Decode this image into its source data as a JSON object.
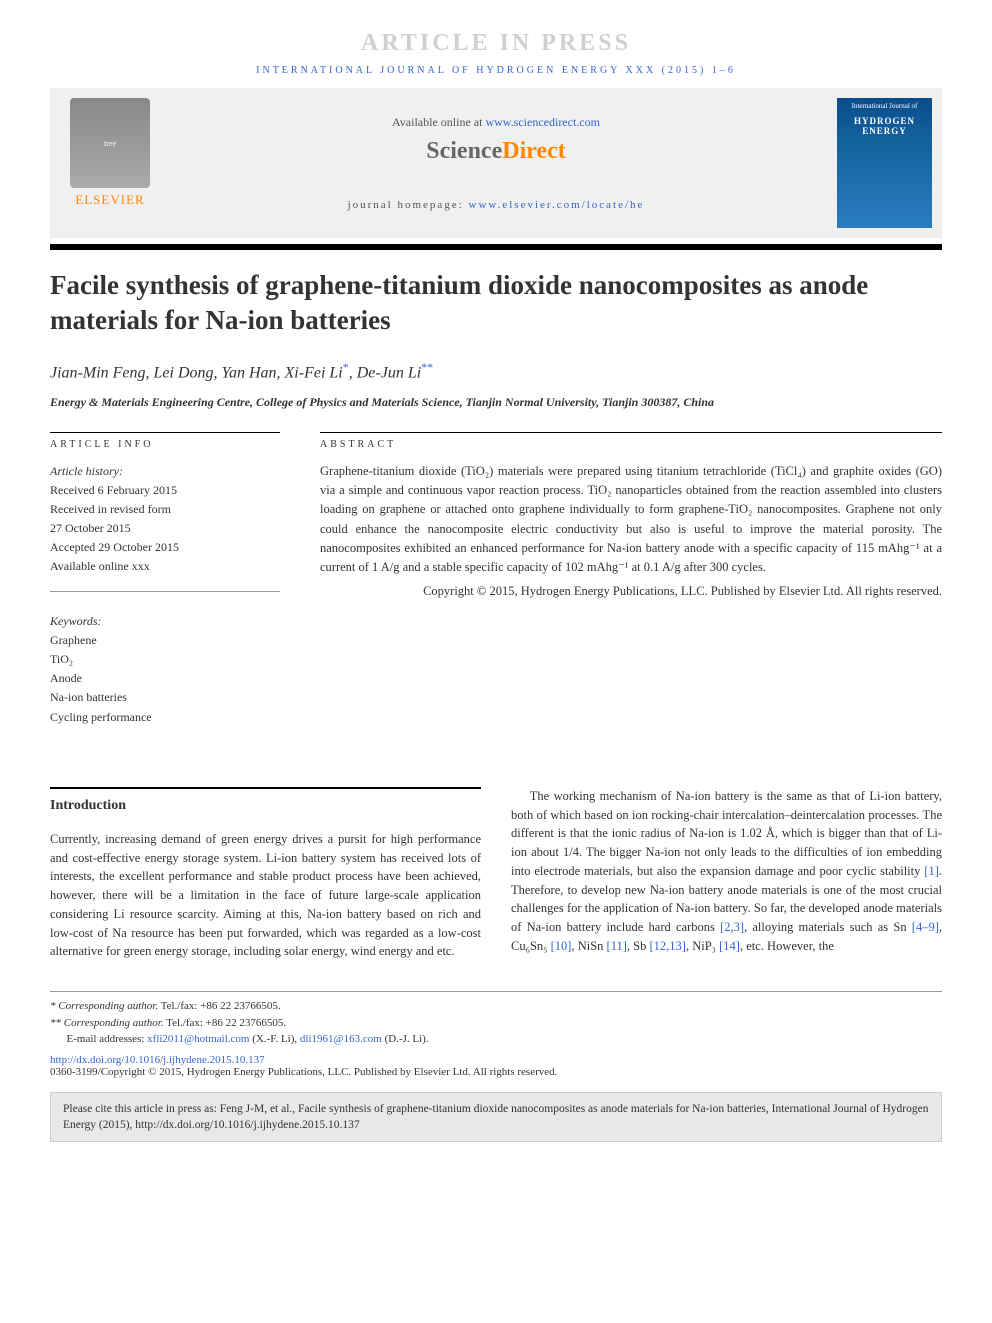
{
  "pressBanner": "ARTICLE IN PRESS",
  "journalRef": "INTERNATIONAL JOURNAL OF HYDROGEN ENERGY XXX (2015) 1–6",
  "header": {
    "availableText": "Available online at ",
    "availableLink": "www.sciencedirect.com",
    "sdScience": "Science",
    "sdDirect": "Direct",
    "homepageLabel": "journal homepage: ",
    "homepageLink": "www.elsevier.com/locate/he",
    "elsevierText": "ELSEVIER",
    "coverTop": "International Journal of",
    "coverMain": "HYDROGEN ENERGY"
  },
  "title": "Facile synthesis of graphene-titanium dioxide nanocomposites as anode materials for Na-ion batteries",
  "authors": {
    "a1": "Jian-Min Feng",
    "a2": "Lei Dong",
    "a3": "Yan Han",
    "a4": "Xi-Fei Li",
    "a5": "De-Jun Li",
    "corr1": "*",
    "corr2": "**"
  },
  "affiliation": "Energy & Materials Engineering Centre, College of Physics and Materials Science, Tianjin Normal University, Tianjin 300387, China",
  "info": {
    "label": "ARTICLE INFO",
    "historyLabel": "Article history:",
    "received": "Received 6 February 2015",
    "revisedLabel": "Received in revised form",
    "revisedDate": "27 October 2015",
    "accepted": "Accepted 29 October 2015",
    "available": "Available online xxx",
    "keywordsLabel": "Keywords:",
    "kw1": "Graphene",
    "kw2": "TiO₂",
    "kw3": "Anode",
    "kw4": "Na-ion batteries",
    "kw5": "Cycling performance"
  },
  "abstract": {
    "label": "ABSTRACT",
    "text": "Graphene-titanium dioxide (TiO₂) materials were prepared using titanium tetrachloride (TiCl₄) and graphite oxides (GO) via a simple and continuous vapor reaction process. TiO₂ nanoparticles obtained from the reaction assembled into clusters loading on graphene or attached onto graphene individually to form graphene-TiO₂ nanocomposites. Graphene not only could enhance the nanocomposite electric conductivity but also is useful to improve the material porosity. The nanocomposites exhibited an enhanced performance for Na-ion battery anode with a specific capacity of 115 mAhg⁻¹ at a current of 1 A/g and a stable specific capacity of 102 mAhg⁻¹ at 0.1 A/g after 300 cycles.",
    "copyright": "Copyright © 2015, Hydrogen Energy Publications, LLC. Published by Elsevier Ltd. All rights reserved."
  },
  "body": {
    "introHeading": "Introduction",
    "col1": "Currently, increasing demand of green energy drives a pursit for high performance and cost-effective energy storage system. Li-ion battery system has received lots of interests, the excellent performance and stable product process have been achieved, however, there will be a limitation in the face of future large-scale application considering Li resource scarcity. Aiming at this, Na-ion battery based on rich and low-cost of Na resource has been put forwarded, which was regarded as a low-cost alternative for green energy storage, including solar energy, wind energy and etc.",
    "col2a": "The working mechanism of Na-ion battery is the same as that of Li-ion battery, both of which based on ion rocking-chair intercalation–deintercalation processes. The different is that the ionic radius of Na-ion is 1.02 Å, which is bigger than that of Li-ion about 1/4. The bigger Na-ion not only leads to the difficulties of ion embedding into electrode materials, but also the expansion damage and poor cyclic stability ",
    "ref1": "[1]",
    "col2b": ". Therefore, to develop new Na-ion battery anode materials is one of the most crucial challenges for the application of Na-ion battery. So far, the developed anode materials of Na-ion battery include hard carbons ",
    "ref23": "[2,3]",
    "col2c": ", alloying materials such as Sn ",
    "ref49": "[4–9]",
    "col2d": ", Cu₆Sn₅ ",
    "ref10": "[10]",
    "col2e": ", NiSn ",
    "ref11": "[11]",
    "col2f": ", Sb ",
    "ref1213": "[12,13]",
    "col2g": ", NiP₃ ",
    "ref14": "[14]",
    "col2h": ", etc. However, the"
  },
  "footnotes": {
    "corr1Label": "* Corresponding author.",
    "corr1Tel": " Tel./fax: +86 22 23766505.",
    "corr2Label": "** Corresponding author.",
    "corr2Tel": " Tel./fax: +86 22 23766505.",
    "emailLabel": "E-mail addresses: ",
    "email1": "xfli2011@hotmail.com",
    "email1Who": " (X.-F. Li), ",
    "email2": "dli1961@163.com",
    "email2Who": " (D.-J. Li).",
    "doi": "http://dx.doi.org/10.1016/j.ijhydene.2015.10.137",
    "bottomCopy": "0360-3199/Copyright © 2015, Hydrogen Energy Publications, LLC. Published by Elsevier Ltd. All rights reserved."
  },
  "citeBox": "Please cite this article in press as: Feng J-M, et al., Facile synthesis of graphene-titanium dioxide nanocomposites as anode materials for Na-ion batteries, International Journal of Hydrogen Energy (2015), http://dx.doi.org/10.1016/j.ijhydene.2015.10.137"
}
